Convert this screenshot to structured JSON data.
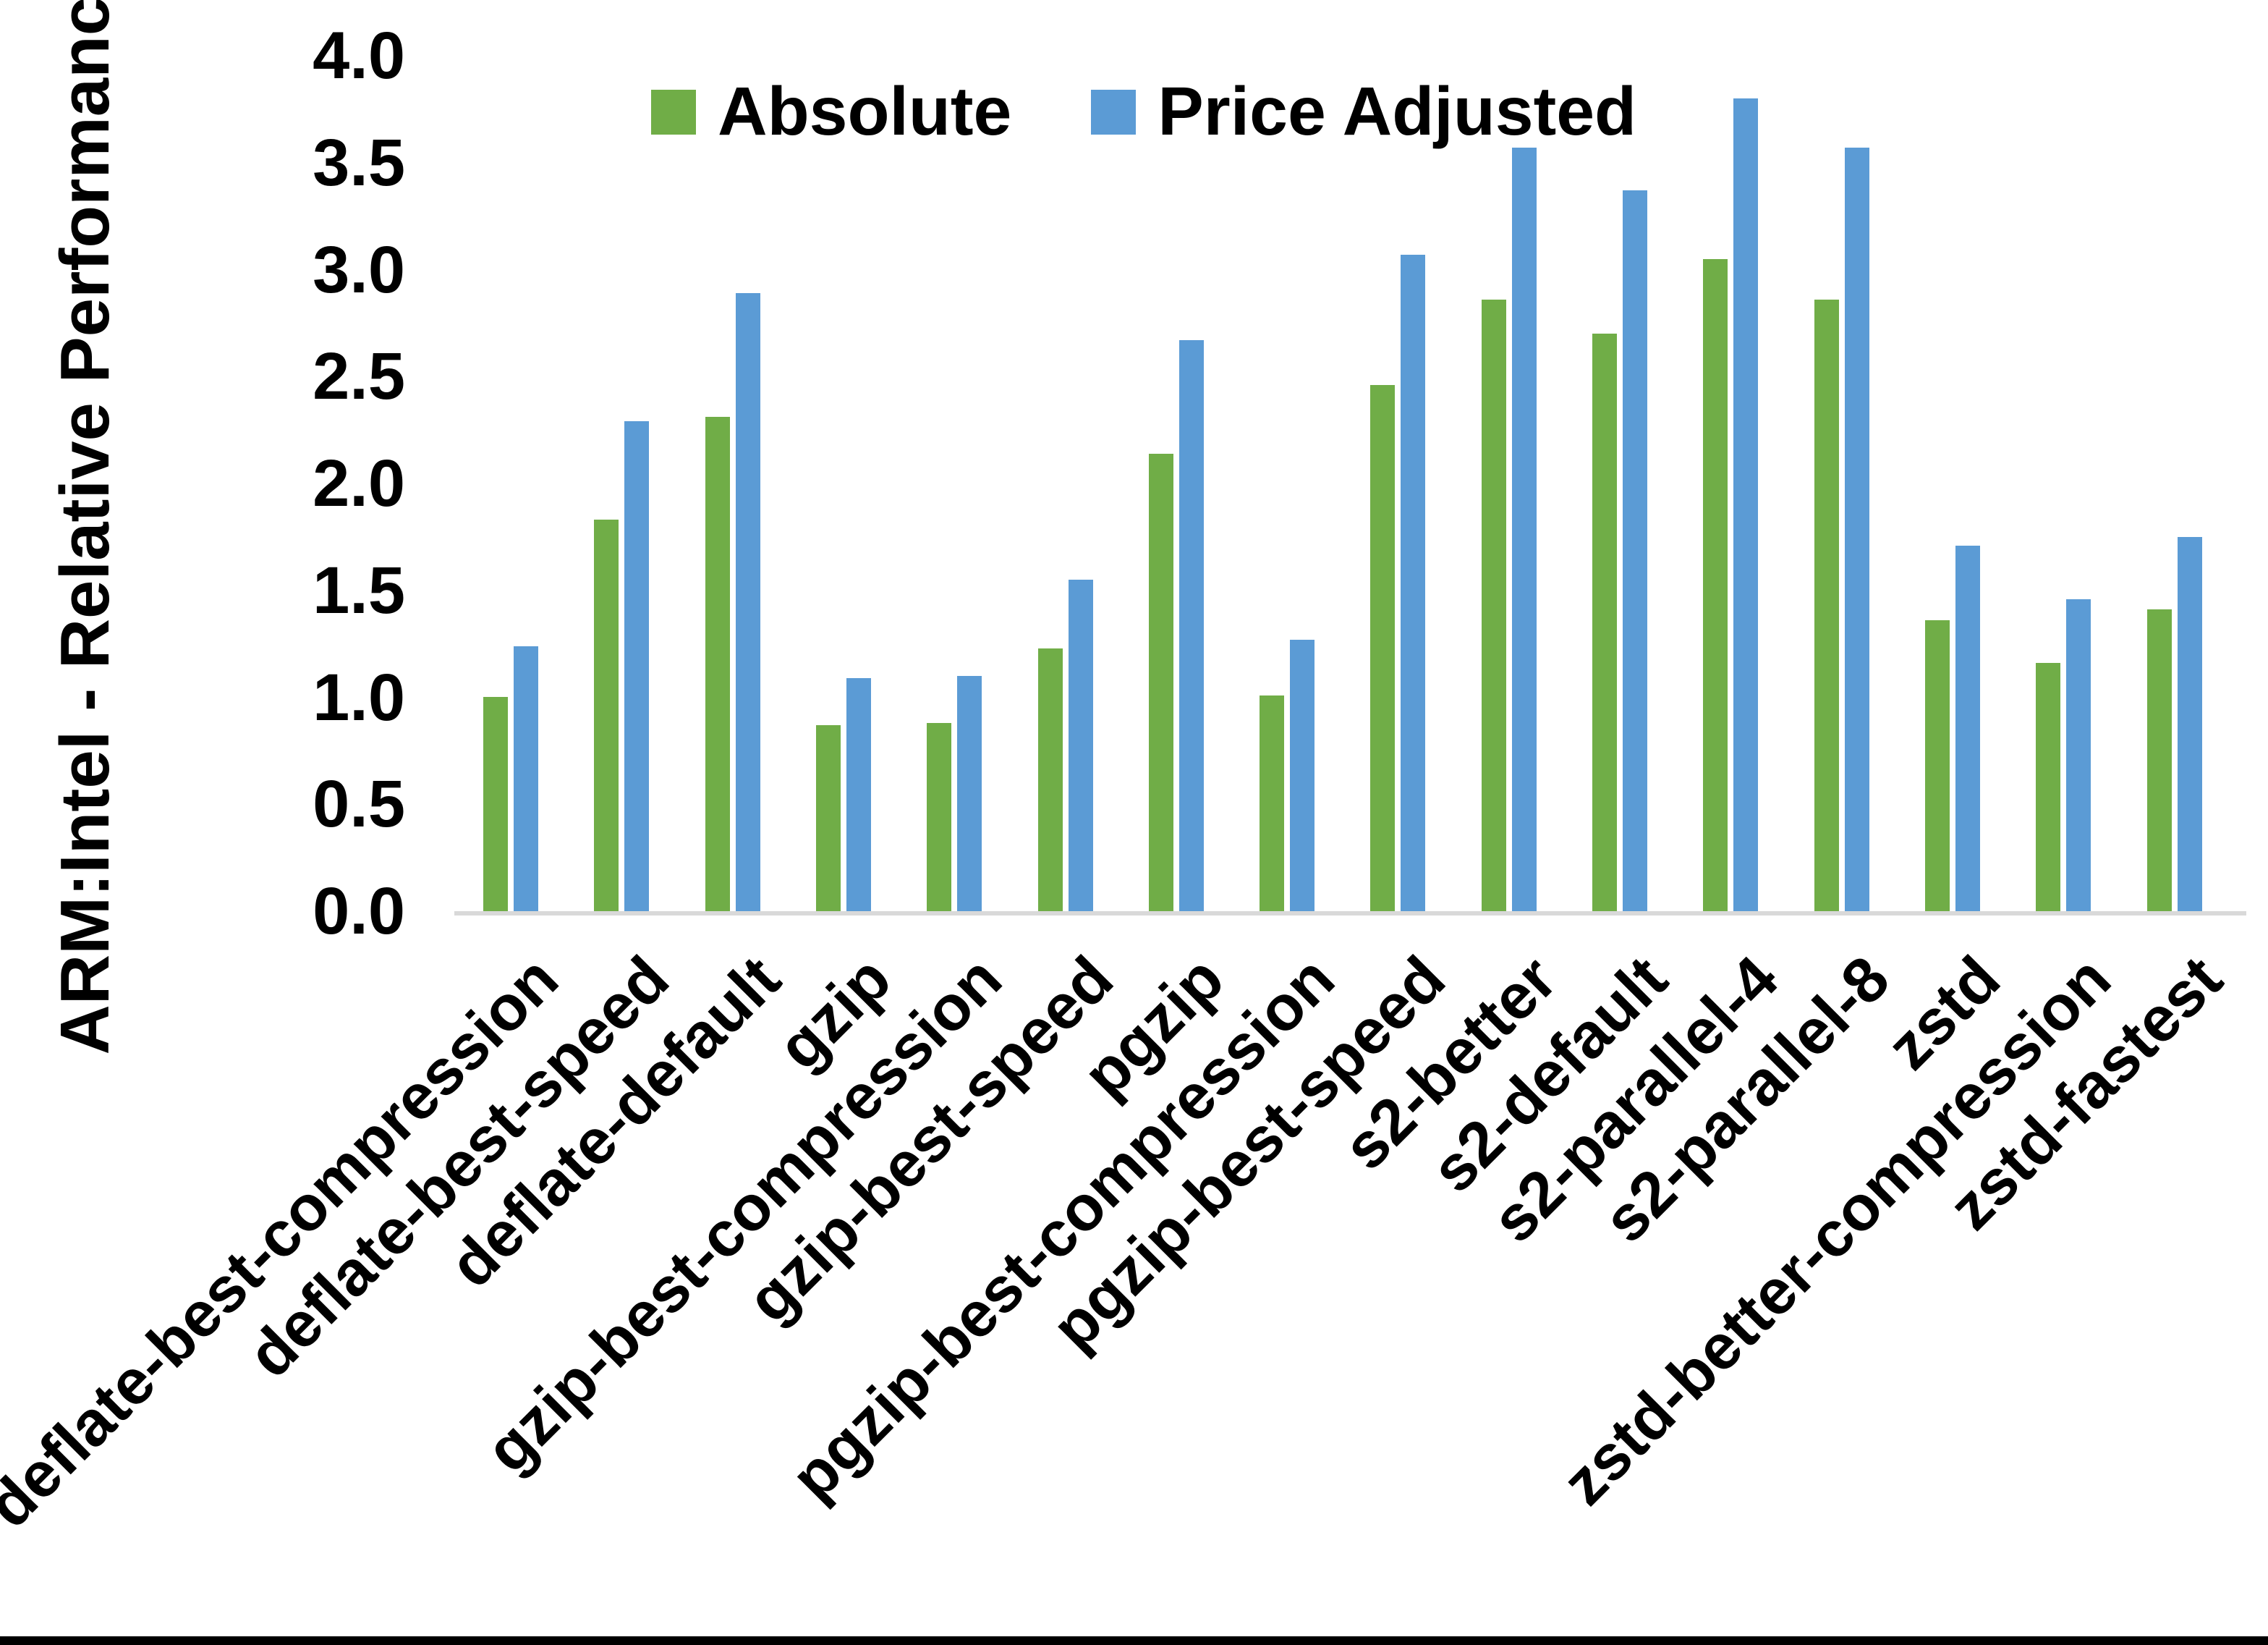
{
  "chart_data": {
    "type": "bar",
    "title": "",
    "xlabel": "",
    "ylabel": "ARM:Intel - Relative Performance",
    "ylim": [
      0.0,
      4.0
    ],
    "ytick_step": 0.5,
    "ytick_labels": [
      "0.0",
      "0.5",
      "1.0",
      "1.5",
      "2.0",
      "2.5",
      "3.0",
      "3.5",
      "4.0"
    ],
    "grid": false,
    "legend_position": "top",
    "axis_line_color": "#d9d9d9",
    "categories": [
      "deflate-best-compression",
      "deflate-best-speed",
      "deflate-default",
      "gzip",
      "gzip-best-compression",
      "gzip-best-speed",
      "pgzip",
      "pgzip-best-compression",
      "pgzip-best-speed",
      "s2-better",
      "s2-default",
      "s2-parallel-4",
      "s2-parallel-8",
      "zstd",
      "zstd-better-compression",
      "zstd-fastest"
    ],
    "series": [
      {
        "name": "Absolute",
        "color": "#70ad47",
        "values": [
          1.0,
          1.83,
          2.31,
          0.87,
          0.88,
          1.23,
          2.14,
          1.01,
          2.46,
          2.86,
          2.7,
          3.05,
          2.86,
          1.36,
          1.16,
          1.41
        ]
      },
      {
        "name": "Price Adjusted",
        "color": "#5b9bd5",
        "values": [
          1.24,
          2.29,
          2.89,
          1.09,
          1.1,
          1.55,
          2.67,
          1.27,
          3.07,
          3.57,
          3.37,
          3.8,
          3.57,
          1.71,
          1.46,
          1.75
        ]
      }
    ]
  }
}
